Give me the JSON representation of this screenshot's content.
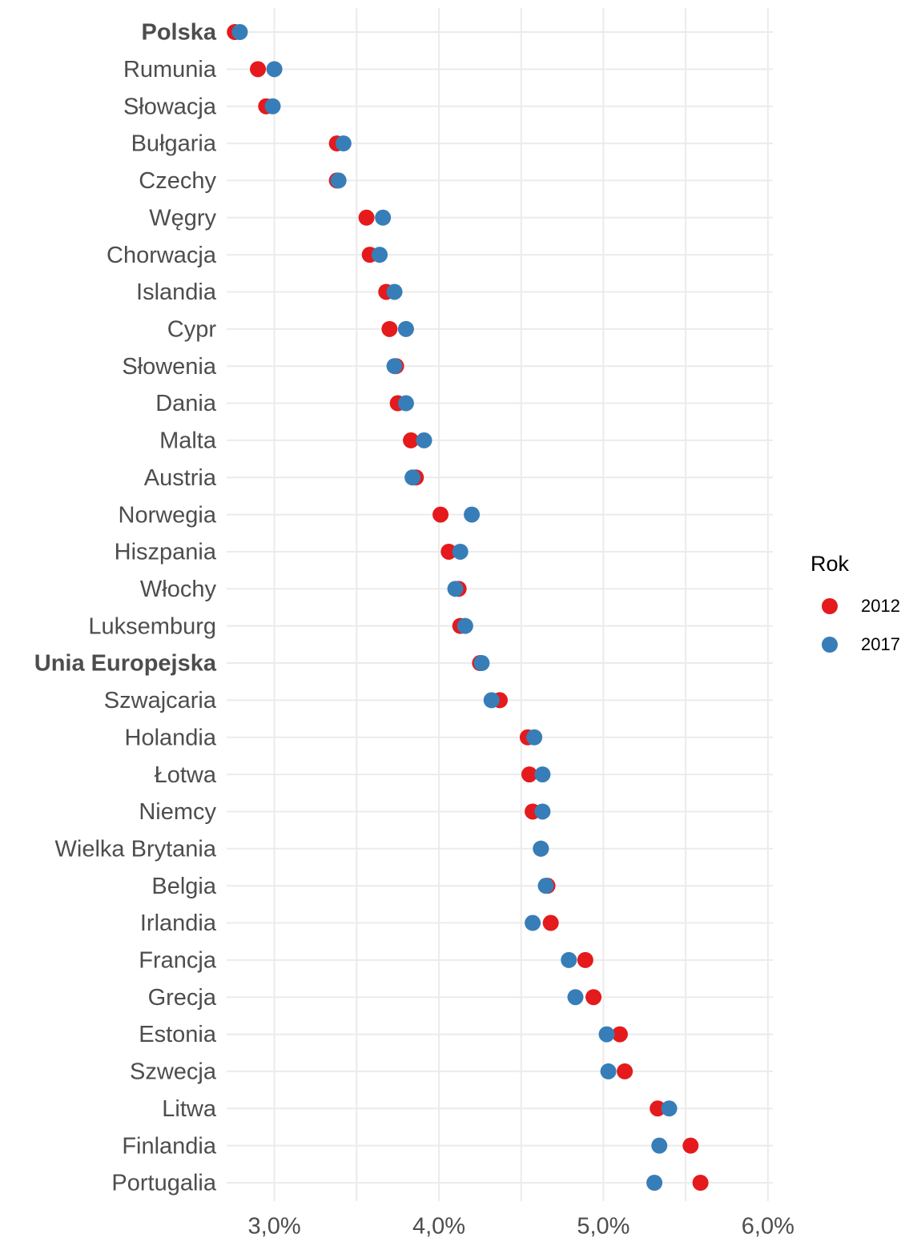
{
  "chart_data": {
    "type": "dot",
    "categories": [
      "Polska",
      "Rumunia",
      "Słowacja",
      "Bułgaria",
      "Czechy",
      "Węgry",
      "Chorwacja",
      "Islandia",
      "Cypr",
      "Słowenia",
      "Dania",
      "Malta",
      "Austria",
      "Norwegia",
      "Hiszpania",
      "Włochy",
      "Luksemburg",
      "Unia Europejska",
      "Szwajcaria",
      "Holandia",
      "Łotwa",
      "Niemcy",
      "Wielka Brytania",
      "Belgia",
      "Irlandia",
      "Francja",
      "Grecja",
      "Estonia",
      "Szwecja",
      "Litwa",
      "Finlandia",
      "Portugalia"
    ],
    "bold_categories": [
      0,
      17
    ],
    "series": [
      {
        "name": "2012",
        "color": "#e41a1c",
        "values": [
          2.76,
          2.9,
          2.95,
          3.38,
          3.38,
          3.56,
          3.58,
          3.68,
          3.7,
          3.74,
          3.75,
          3.83,
          3.86,
          4.01,
          4.06,
          4.12,
          4.13,
          4.25,
          4.37,
          4.54,
          4.55,
          4.57,
          4.62,
          4.66,
          4.68,
          4.89,
          4.94,
          5.1,
          5.13,
          5.33,
          5.53,
          5.59
        ]
      },
      {
        "name": "2017",
        "color": "#377eb8",
        "values": [
          2.79,
          3.0,
          2.99,
          3.42,
          3.39,
          3.66,
          3.64,
          3.73,
          3.8,
          3.73,
          3.8,
          3.91,
          3.84,
          4.2,
          4.13,
          4.1,
          4.16,
          4.26,
          4.32,
          4.58,
          4.63,
          4.63,
          4.62,
          4.65,
          4.57,
          4.79,
          4.83,
          5.02,
          5.03,
          5.4,
          5.34,
          5.31
        ]
      }
    ],
    "legend_title": "Rok",
    "legend": "right",
    "xlim": [
      2.71,
      6.03
    ],
    "xticks": [
      {
        "value": 3,
        "label": "3,0%"
      },
      {
        "value": 4,
        "label": "4,0%"
      },
      {
        "value": 5,
        "label": "5,0%"
      },
      {
        "value": 6,
        "label": "6,0%"
      }
    ],
    "minor_xticks": [
      3.5,
      4.5,
      5.5
    ],
    "grid": true
  }
}
